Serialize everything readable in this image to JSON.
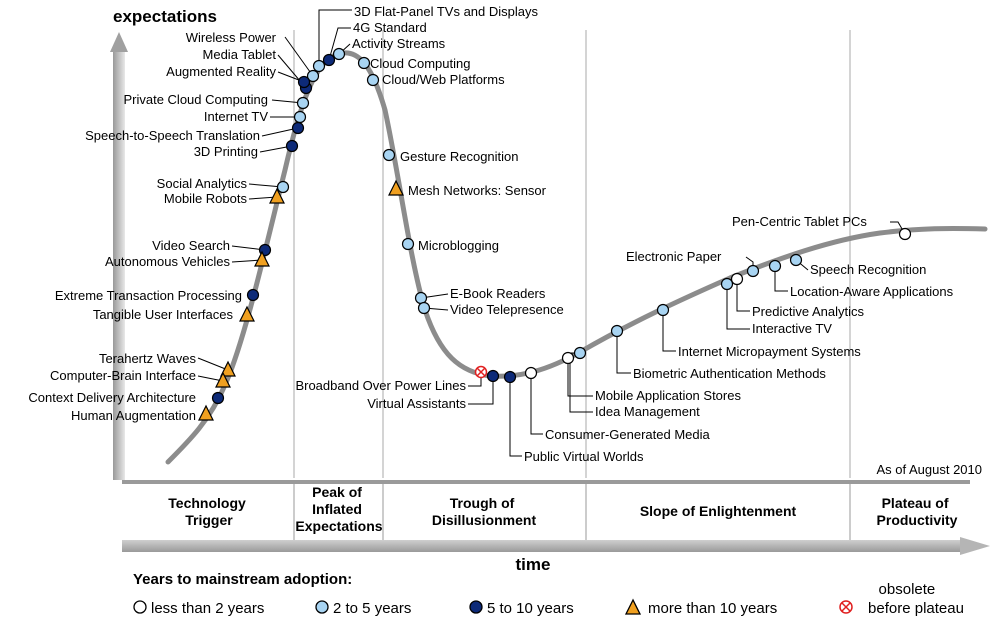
{
  "axis": {
    "y_label": "expectations",
    "x_label": "time"
  },
  "note": "As of August 2010",
  "phases": [
    {
      "lines": [
        "Technology",
        "Trigger"
      ]
    },
    {
      "lines": [
        "Peak of",
        "Inflated",
        "Expectations"
      ]
    },
    {
      "lines": [
        "Trough of",
        "Disillusionment"
      ]
    },
    {
      "lines": [
        "Slope of Enlightenment"
      ]
    },
    {
      "lines": [
        "Plateau of",
        "Productivity"
      ]
    }
  ],
  "legend": {
    "title": "Years to mainstream adoption:",
    "items": [
      {
        "marker": "white-circle",
        "label": "less than 2 years"
      },
      {
        "marker": "lightblue-circle",
        "label": "2 to 5 years"
      },
      {
        "marker": "navy-circle",
        "label": "5 to 10 years"
      },
      {
        "marker": "orange-triangle",
        "label": "more than 10 years"
      },
      {
        "marker": "obsolete-circle",
        "label_lines": [
          "obsolete",
          "before plateau"
        ]
      }
    ]
  },
  "colors": {
    "curve": "#8c8c8c",
    "lt2": "#ffffff",
    "y2to5": "#a8d4f2",
    "y5to10": "#0d2a78",
    "gt10": "#f0a020",
    "obsolete": "#e02020",
    "band": "#d4d4d4"
  },
  "technologies": [
    {
      "name": "3D Flat-Panel TVs and Displays",
      "adoption": "2 to 5 years"
    },
    {
      "name": "4G Standard",
      "adoption": "5 to 10 years"
    },
    {
      "name": "Activity Streams",
      "adoption": "2 to 5 years"
    },
    {
      "name": "Wireless Power",
      "adoption": "2 to 5 years"
    },
    {
      "name": "Media Tablet",
      "adoption": "5 to 10 years"
    },
    {
      "name": "Augmented Reality",
      "adoption": "5 to 10 years"
    },
    {
      "name": "Cloud Computing",
      "adoption": "2 to 5 years"
    },
    {
      "name": "Cloud/Web Platforms",
      "adoption": "2 to 5 years"
    },
    {
      "name": "Private Cloud Computing",
      "adoption": "2 to 5 years"
    },
    {
      "name": "Internet TV",
      "adoption": "2 to 5 years"
    },
    {
      "name": "Speech-to-Speech Translation",
      "adoption": "5 to 10 years"
    },
    {
      "name": "3D Printing",
      "adoption": "5 to 10 years"
    },
    {
      "name": "Gesture Recognition",
      "adoption": "2 to 5 years"
    },
    {
      "name": "Social Analytics",
      "adoption": "2 to 5 years"
    },
    {
      "name": "Mobile Robots",
      "adoption": "more than 10 years"
    },
    {
      "name": "Mesh Networks: Sensor",
      "adoption": "more than 10 years"
    },
    {
      "name": "Microblogging",
      "adoption": "2 to 5 years"
    },
    {
      "name": "Video Search",
      "adoption": "5 to 10 years"
    },
    {
      "name": "Autonomous Vehicles",
      "adoption": "more than 10 years"
    },
    {
      "name": "Extreme Transaction Processing",
      "adoption": "5 to 10 years"
    },
    {
      "name": "Tangible User Interfaces",
      "adoption": "more than 10 years"
    },
    {
      "name": "E-Book Readers",
      "adoption": "2 to 5 years"
    },
    {
      "name": "Video Telepresence",
      "adoption": "2 to 5 years"
    },
    {
      "name": "Terahertz Waves",
      "adoption": "more than 10 years"
    },
    {
      "name": "Computer-Brain Interface",
      "adoption": "more than 10 years"
    },
    {
      "name": "Context Delivery Architecture",
      "adoption": "5 to 10 years"
    },
    {
      "name": "Human Augmentation",
      "adoption": "more than 10 years"
    },
    {
      "name": "Broadband Over Power Lines",
      "adoption": "obsolete before plateau"
    },
    {
      "name": "Virtual Assistants",
      "adoption": "5 to 10 years"
    },
    {
      "name": "Public Virtual Worlds",
      "adoption": "5 to 10 years"
    },
    {
      "name": "Consumer-Generated Media",
      "adoption": "less than 2 years"
    },
    {
      "name": "Mobile Application Stores",
      "adoption": "less than 2 years"
    },
    {
      "name": "Idea Management",
      "adoption": "2 to 5 years"
    },
    {
      "name": "Biometric Authentication Methods",
      "adoption": "2 to 5 years"
    },
    {
      "name": "Internet Micropayment Systems",
      "adoption": "2 to 5 years"
    },
    {
      "name": "Predictive Analytics",
      "adoption": "less than 2 years"
    },
    {
      "name": "Interactive TV",
      "adoption": "2 to 5 years"
    },
    {
      "name": "Electronic Paper",
      "adoption": "2 to 5 years"
    },
    {
      "name": "Location-Aware Applications",
      "adoption": "2 to 5 years"
    },
    {
      "name": "Speech Recognition",
      "adoption": "2 to 5 years"
    },
    {
      "name": "Pen-Centric Tablet PCs",
      "adoption": "less than 2 years"
    }
  ]
}
